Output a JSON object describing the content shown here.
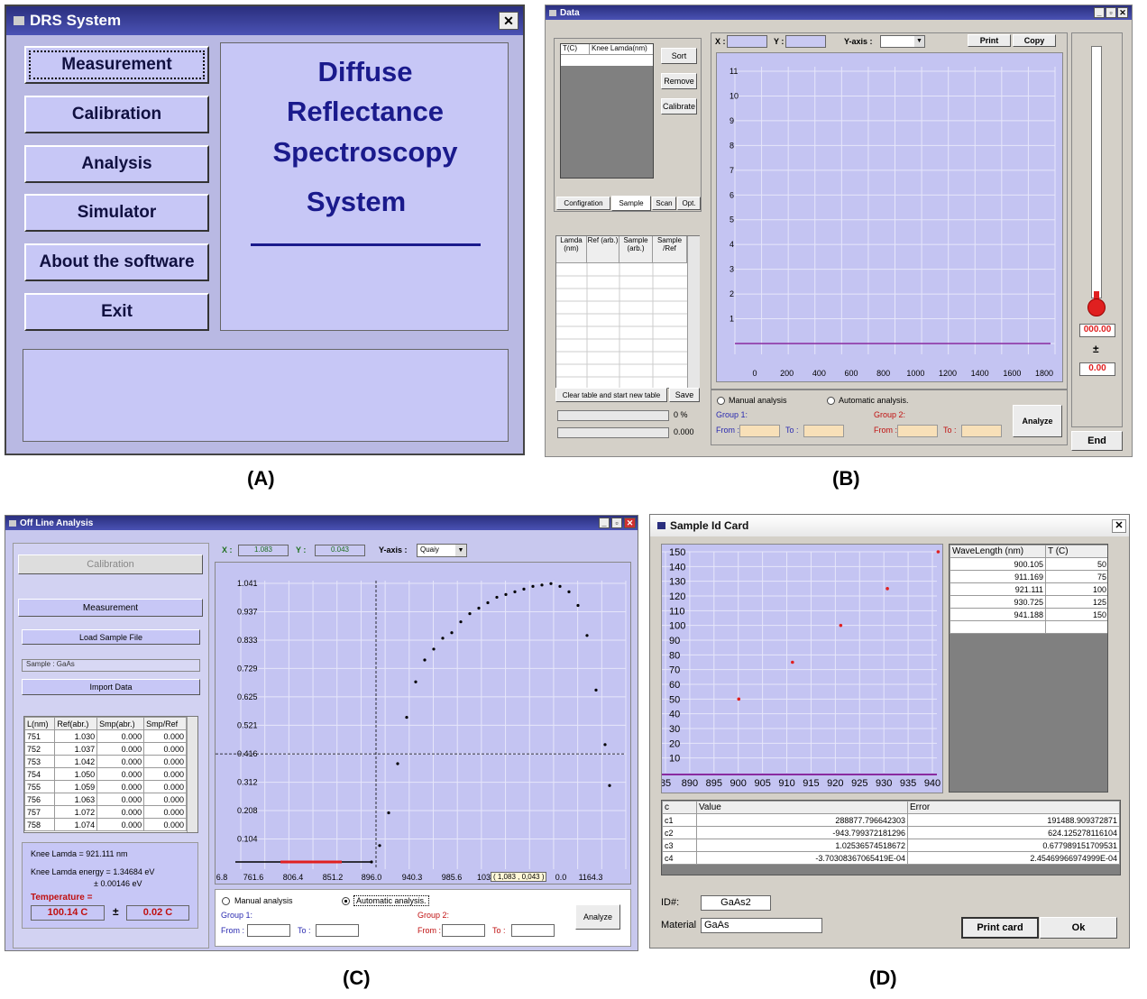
{
  "labels": {
    "a": "(A)",
    "b": "(B)",
    "c": "(C)",
    "d": "(D)"
  },
  "panelA": {
    "title": "DRS System",
    "close": "✕",
    "buttons": [
      "Measurement",
      "Calibration",
      "Analysis",
      "Simulator",
      "About the software",
      "Exit"
    ],
    "heading": [
      "Diffuse",
      "Reflectance",
      "Spectroscopy",
      "System"
    ]
  },
  "panelB": {
    "title": "Data",
    "win_controls": [
      "_",
      "▫",
      "✕"
    ],
    "table_headers": [
      "T(C)",
      "Knee Lamda(nm)"
    ],
    "buttons": {
      "sort": "Sort",
      "remove": "Remove",
      "calibrate": "Calibrate",
      "print": "Print",
      "copy": "Copy",
      "clear": "Clear table and start new table",
      "save": "Save",
      "analyze": "Analyze",
      "end": "End"
    },
    "tabs": [
      "Configration",
      "Sample",
      "Scan",
      "Opt."
    ],
    "grid_headers": [
      "Lamda (nm)",
      "Ref (arb.)",
      "Sample (arb.)",
      "Sample /Ref"
    ],
    "progress": [
      "0 %",
      "0.000"
    ],
    "x_label": "X :",
    "y_label": "Y :",
    "yaxis_label": "Y-axis :",
    "y_ticks": [
      "11",
      "10",
      "9",
      "8",
      "7",
      "6",
      "5",
      "4",
      "3",
      "2",
      "1"
    ],
    "x_ticks": [
      "0",
      "200",
      "400",
      "600",
      "800",
      "1000",
      "1200",
      "1400",
      "1600",
      "1800"
    ],
    "manual": "Manual analysis",
    "automatic": "Automatic analysis.",
    "group1": "Group 1:",
    "group2": "Group 2:",
    "from": "From :",
    "to": "To :",
    "temp": "000.00",
    "plusminus": "±",
    "temp_err": "0.00"
  },
  "panelC": {
    "title": "Off Line Analysis",
    "win_controls": [
      "_",
      "▫",
      "✕"
    ],
    "calibration": "Calibration",
    "measurement": "Measurement",
    "load": "Load Sample File",
    "sample": "Sample :  GaAs",
    "import": "Import Data",
    "table_headers": [
      "L(nm)",
      "Ref(abr.)",
      "Smp(abr.)",
      "Smp/Ref"
    ],
    "rows": [
      [
        "751",
        "1.030",
        "0.000",
        "0.000"
      ],
      [
        "752",
        "1.037",
        "0.000",
        "0.000"
      ],
      [
        "753",
        "1.042",
        "0.000",
        "0.000"
      ],
      [
        "754",
        "1.050",
        "0.000",
        "0.000"
      ],
      [
        "755",
        "1.059",
        "0.000",
        "0.000"
      ],
      [
        "756",
        "1.063",
        "0.000",
        "0.000"
      ],
      [
        "757",
        "1.072",
        "0.000",
        "0.000"
      ],
      [
        "758",
        "1.074",
        "0.000",
        "0.000"
      ]
    ],
    "knee": "Knee Lamda =   921.111 nm",
    "knee_energy": "Knee Lamda energy =  1.34684 eV",
    "knee_err": "±   0.00146 eV",
    "temperature": "Temperature =",
    "temp": "100.14  C",
    "plusminus": "±",
    "temp_err": "0.02  C",
    "x_label": "X :",
    "x_val": "1.083",
    "y_label": "Y :",
    "y_val": "0.043",
    "yaxis_label": "Y-axis :",
    "yaxis_val": "Quaiy",
    "y_ticks": [
      "1.041",
      "0.937",
      "0.833",
      "0.729",
      "0.625",
      "0.521",
      "0.416",
      "0.312",
      "0.208",
      "0.104"
    ],
    "x_ticks": [
      "6.8",
      "761.6",
      "806.4",
      "851.2",
      "896.0",
      "940.3",
      "985.6",
      "1030",
      "0.0",
      "1164.3"
    ],
    "tooltip": "( 1,083 , 0,043 )",
    "manual": "Manual analysis",
    "automatic": "Automatic analysis.",
    "group1": "Group 1:",
    "group2": "Group 2:",
    "from": "From :",
    "to": "To :",
    "analyze": "Analyze"
  },
  "panelD": {
    "title": "Sample Id Card",
    "close": "✕",
    "y_ticks": [
      "150",
      "140",
      "130",
      "120",
      "110",
      "100",
      "90",
      "80",
      "70",
      "60",
      "50",
      "40",
      "30",
      "20",
      "10"
    ],
    "x_ticks": [
      "85",
      "890",
      "895",
      "900",
      "905",
      "910",
      "915",
      "920",
      "925",
      "930",
      "935",
      "940"
    ],
    "wl_headers": [
      "WaveLength (nm)",
      "T (C)"
    ],
    "wl_rows": [
      [
        "900.105",
        "50"
      ],
      [
        "911.169",
        "75"
      ],
      [
        "921.111",
        "100"
      ],
      [
        "930.725",
        "125"
      ],
      [
        "941.188",
        "150"
      ]
    ],
    "coef_headers": [
      "c",
      "Value",
      "Error"
    ],
    "coef_rows": [
      [
        "c1",
        "288877.796642303",
        "191488.909372871"
      ],
      [
        "c2",
        "-943.799372181296",
        "624.125278116104"
      ],
      [
        "c3",
        "1.02536574518672",
        "0.677989151709531"
      ],
      [
        "c4",
        "-3.70308367065419E-04",
        "2.45469966974999E-04"
      ]
    ],
    "id_label": "ID#:",
    "id_val": "GaAs2",
    "material_label": "Material",
    "material_val": "GaAs",
    "print_card": "Print card",
    "ok": "Ok"
  },
  "colors": {
    "accent": "#1a1a8c",
    "plot_bg": "#c4c4f2",
    "panel_bg": "#b9b9e3",
    "red": "#e02020",
    "purple": "#8a2aa0"
  },
  "chart_data": [
    {
      "type": "line",
      "title": "",
      "y_ticks": [
        "1",
        "2",
        "3",
        "4",
        "5",
        "6",
        "7",
        "8",
        "9",
        "10",
        "11"
      ],
      "x_ticks": [
        "0",
        "200",
        "400",
        "600",
        "800",
        "1000",
        "1200",
        "1400",
        "1600",
        "1800"
      ],
      "ylim": [
        0,
        11
      ],
      "xlim": [
        0,
        1800
      ],
      "series": [
        {
          "x": [
            0,
            1800
          ],
          "values": [
            0,
            0
          ]
        }
      ]
    },
    {
      "type": "scatter",
      "title": "",
      "x": [
        896,
        905,
        915,
        925,
        935,
        945,
        955,
        965,
        975,
        985,
        995,
        1005,
        1015,
        1025,
        1035,
        1045,
        1055,
        1065,
        1075,
        1085,
        1095,
        1105,
        1115,
        1125,
        1135,
        1145,
        1155,
        1160
      ],
      "values": [
        0.02,
        0.08,
        0.2,
        0.38,
        0.55,
        0.68,
        0.76,
        0.8,
        0.84,
        0.86,
        0.9,
        0.93,
        0.95,
        0.97,
        0.99,
        1.0,
        1.01,
        1.02,
        1.03,
        1.035,
        1.04,
        1.03,
        1.01,
        0.96,
        0.85,
        0.65,
        0.45,
        0.3
      ],
      "ylim": [
        0,
        1.041
      ]
    },
    {
      "type": "scatter",
      "title": "",
      "x": [
        900.105,
        911.169,
        921.111,
        930.725,
        941.188
      ],
      "values": [
        50,
        75,
        100,
        125,
        150
      ],
      "xlim": [
        885,
        940
      ],
      "ylim": [
        0,
        150
      ]
    }
  ]
}
